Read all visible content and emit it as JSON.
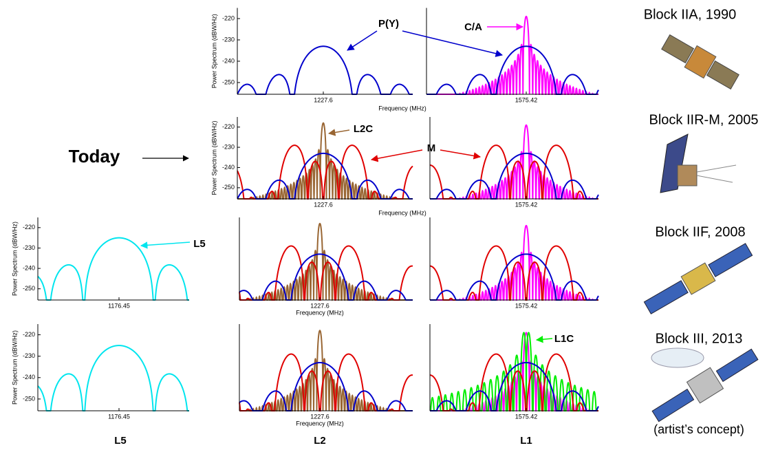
{
  "rows": [
    {
      "satellite": "Block IIA, 1990",
      "l2": {
        "center_label": "1227.6",
        "xlabel": "Frequency (MHz)",
        "ylabel": "Power Spectrum (dBW/Hz)",
        "yticks": [
          -220,
          -230,
          -240,
          -250
        ]
      },
      "l1": {
        "center_label": "1575.42"
      }
    },
    {
      "satellite": "Block IIR-M, 2005",
      "l2": {
        "center_label": "1227.6",
        "xlabel": "Frequency (MHz)",
        "ylabel": "Power Spectrum (dBW/Hz)",
        "yticks": [
          -220,
          -230,
          -240,
          -250
        ]
      },
      "l1": {
        "center_label": "1575.42"
      }
    },
    {
      "satellite": "Block IIF, 2008",
      "l5": {
        "center_label": "1176.45",
        "ylabel": "Power Spectrum (dBW/Hz)",
        "yticks": [
          -220,
          -230,
          -240,
          -250
        ]
      },
      "l2": {
        "center_label": "1227.6",
        "xlabel": "Frequency (MHz)"
      },
      "l1": {
        "center_label": "1575.42"
      }
    },
    {
      "satellite": "Block III, 2013",
      "l5": {
        "center_label": "1176.45",
        "ylabel": "Power Spectrum (dBW/Hz)",
        "yticks": [
          -220,
          -230,
          -240,
          -250
        ]
      },
      "l2": {
        "center_label": "1227.6",
        "xlabel": "Frequency (MHz)"
      },
      "l1": {
        "center_label": "1575.42"
      }
    }
  ],
  "ylim": [
    -255.5,
    -215
  ],
  "callouts": {
    "py": "P(Y)",
    "ca": "C/A",
    "l2c": "L2C",
    "m": "M",
    "l5": "L5",
    "l1c": "L1C"
  },
  "today": "Today",
  "columns": {
    "l5": "L5",
    "l2": "L2",
    "l1": "L1"
  },
  "note": "(artist’s concept)"
}
